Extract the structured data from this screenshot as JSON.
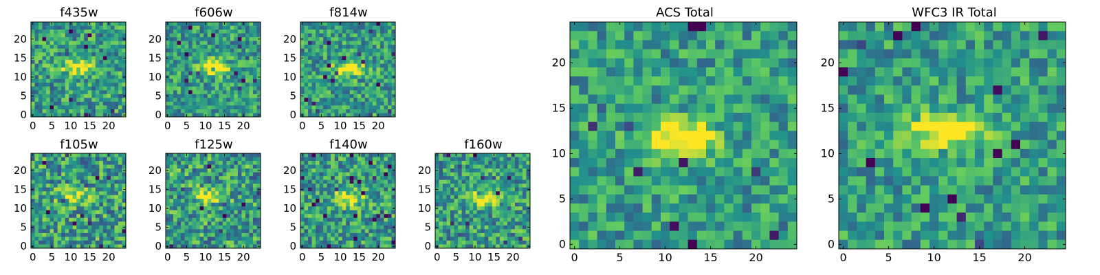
{
  "figure": {
    "colormap": "viridis",
    "colormap_stops": [
      "#440154",
      "#3b528b",
      "#21918c",
      "#5ec962",
      "#fde725"
    ]
  },
  "chart_data": [
    {
      "type": "heatmap",
      "title": "f435w",
      "grid_size": 25,
      "grid": false,
      "xticks": [
        "0",
        "5",
        "10",
        "15",
        "20"
      ],
      "yticks": [
        "0",
        "5",
        "10",
        "15",
        "20"
      ],
      "source_center": [
        12,
        12.5
      ],
      "intensity_scale": 0.45,
      "noise_level": 0.55,
      "seed": 11
    },
    {
      "type": "heatmap",
      "title": "f606w",
      "grid_size": 25,
      "grid": false,
      "xticks": [
        "0",
        "5",
        "10",
        "15",
        "20"
      ],
      "yticks": [
        "0",
        "5",
        "10",
        "15",
        "20"
      ],
      "source_center": [
        12,
        12.5
      ],
      "intensity_scale": 0.55,
      "noise_level": 0.5,
      "seed": 23
    },
    {
      "type": "heatmap",
      "title": "f814w",
      "grid_size": 25,
      "grid": false,
      "xticks": [
        "0",
        "5",
        "10",
        "15",
        "20"
      ],
      "yticks": [
        "0",
        "5",
        "10",
        "15",
        "20"
      ],
      "source_center": [
        12.5,
        12
      ],
      "intensity_scale": 0.55,
      "noise_level": 0.5,
      "seed": 37
    },
    {
      "type": "heatmap",
      "title": "f105w",
      "grid_size": 25,
      "grid": false,
      "xticks": [
        "0",
        "5",
        "10",
        "15",
        "20"
      ],
      "yticks": [
        "0",
        "5",
        "10",
        "15",
        "20"
      ],
      "source_center": [
        11,
        13.5
      ],
      "intensity_scale": 0.4,
      "noise_level": 0.6,
      "seed": 41
    },
    {
      "type": "heatmap",
      "title": "f125w",
      "grid_size": 25,
      "grid": false,
      "xticks": [
        "0",
        "5",
        "10",
        "15",
        "20"
      ],
      "yticks": [
        "0",
        "5",
        "10",
        "15",
        "20"
      ],
      "source_center": [
        11,
        13.5
      ],
      "intensity_scale": 0.45,
      "noise_level": 0.6,
      "seed": 53
    },
    {
      "type": "heatmap",
      "title": "f140w",
      "grid_size": 25,
      "grid": false,
      "xticks": [
        "0",
        "5",
        "10",
        "15",
        "20"
      ],
      "yticks": [
        "0",
        "5",
        "10",
        "15",
        "20"
      ],
      "source_center": [
        12,
        12.5
      ],
      "intensity_scale": 0.5,
      "noise_level": 0.55,
      "seed": 67
    },
    {
      "type": "heatmap",
      "title": "f160w",
      "grid_size": 25,
      "grid": false,
      "xticks": [
        "0",
        "5",
        "10",
        "15",
        "20"
      ],
      "yticks": [
        "0",
        "5",
        "10",
        "15",
        "20"
      ],
      "source_center": [
        12,
        12.5
      ],
      "intensity_scale": 0.5,
      "noise_level": 0.55,
      "seed": 79
    },
    {
      "type": "heatmap",
      "title": "ACS Total",
      "grid_size": 25,
      "grid": false,
      "xticks": [
        "0",
        "5",
        "10",
        "15",
        "20"
      ],
      "yticks": [
        "0",
        "5",
        "10",
        "15",
        "20"
      ],
      "source_center": [
        11.5,
        12
      ],
      "intensity_scale": 0.65,
      "noise_level": 0.45,
      "seed": 97
    },
    {
      "type": "heatmap",
      "title": "WFC3 IR Total",
      "grid_size": 25,
      "grid": false,
      "xticks": [
        "0",
        "5",
        "10",
        "15",
        "20"
      ],
      "yticks": [
        "0",
        "5",
        "10",
        "15",
        "20"
      ],
      "source_center": [
        11.5,
        12.5
      ],
      "intensity_scale": 0.65,
      "noise_level": 0.45,
      "seed": 113
    }
  ]
}
